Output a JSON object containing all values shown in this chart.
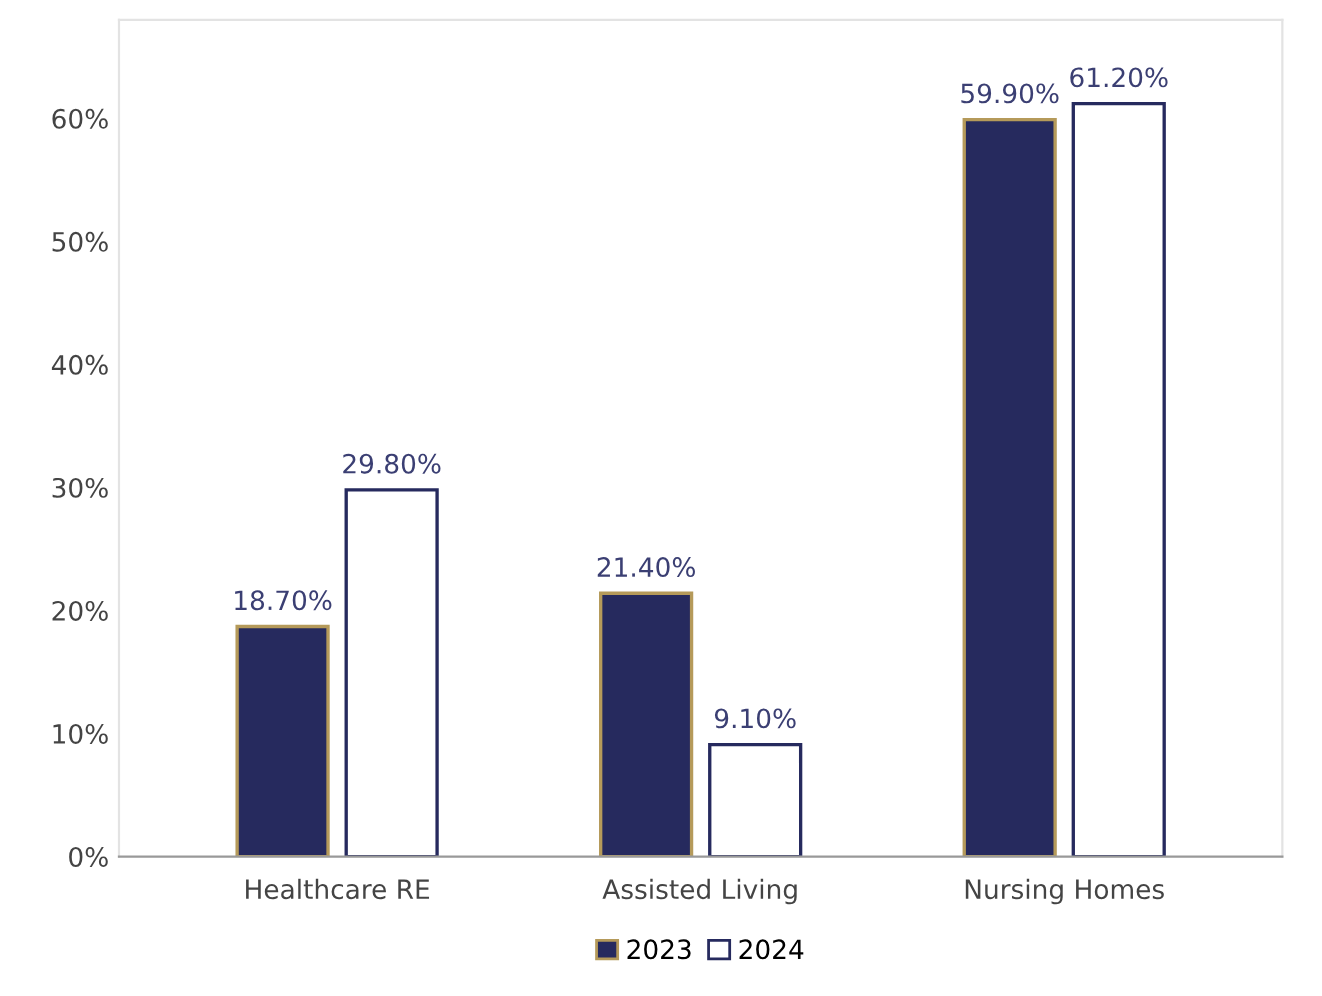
{
  "chart_data": {
    "type": "bar",
    "categories": [
      "Healthcare RE",
      "Assisted Living",
      "Nursing Homes"
    ],
    "series": [
      {
        "name": "2023",
        "color": "#262a5e",
        "values": [
          18.7,
          21.4,
          59.9
        ],
        "value_labels": [
          "18.70%",
          "21.40%",
          "59.90%"
        ]
      },
      {
        "name": "2024",
        "color": "#ffffff",
        "values": [
          29.8,
          9.1,
          61.2
        ],
        "value_labels": [
          "29.80%",
          "9.10%",
          "61.20%"
        ]
      }
    ],
    "ylim": [
      0,
      68
    ],
    "yticks": [
      {
        "value": 0,
        "label": "0%"
      },
      {
        "value": 10,
        "label": "10%"
      },
      {
        "value": 20,
        "label": "20%"
      },
      {
        "value": 30,
        "label": "30%"
      },
      {
        "value": 40,
        "label": "40%"
      },
      {
        "value": 50,
        "label": "50%"
      },
      {
        "value": 60,
        "label": "60%"
      }
    ],
    "grid": false,
    "legend": "bottom"
  }
}
